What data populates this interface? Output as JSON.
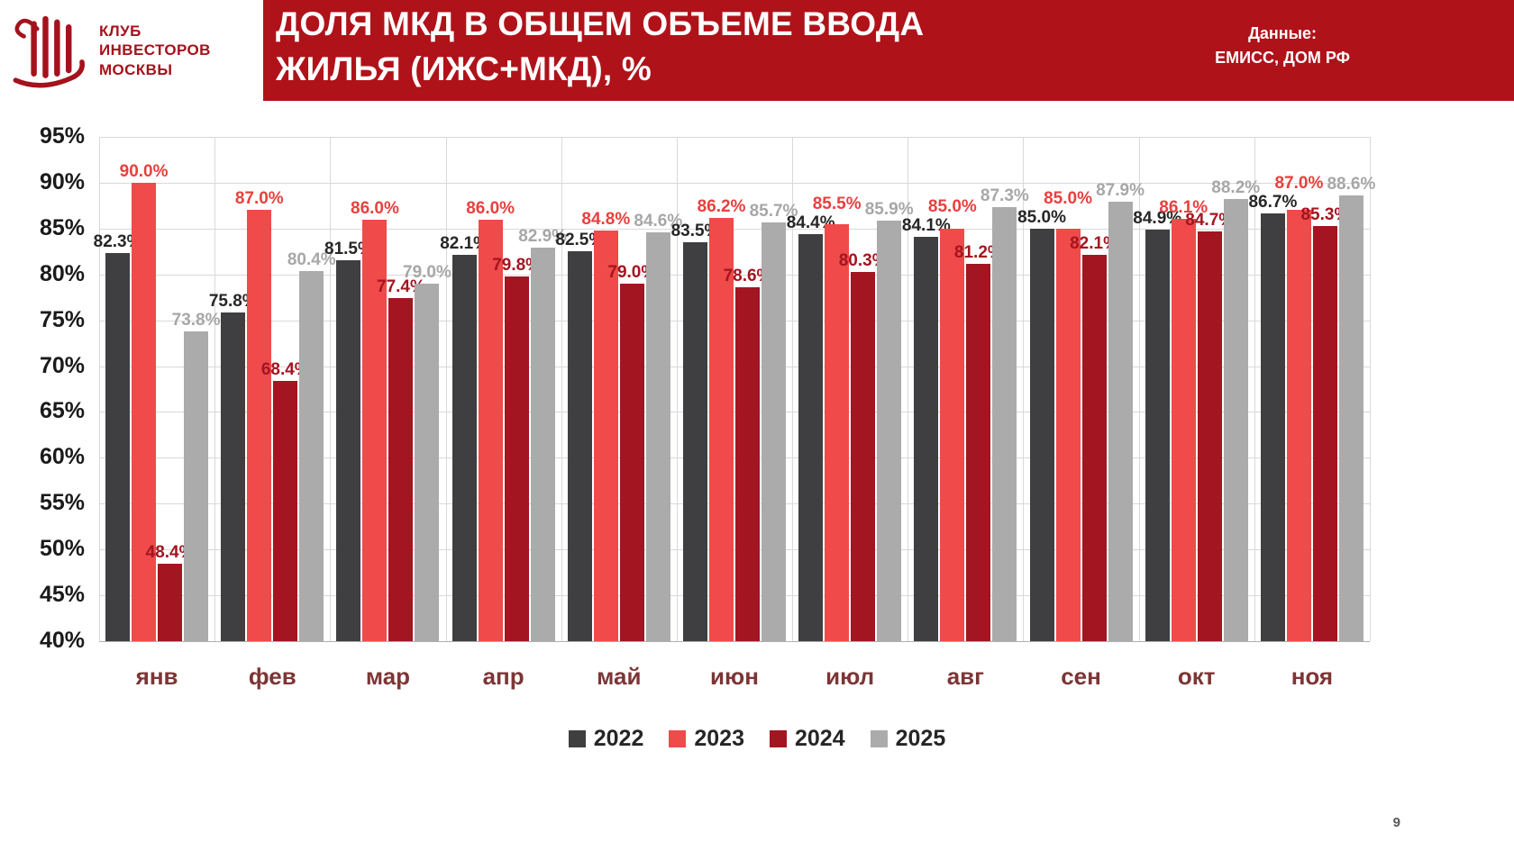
{
  "header": {
    "logo_lines": [
      "КЛУБ",
      "ИНВЕСТОРОВ",
      "МОСКВЫ"
    ],
    "title_line1": "ДОЛЯ МКД В ОБЩЕМ ОБЪЕМЕ ВВОДА",
    "title_line2": "ЖИЛЬЯ (ИЖС+МКД),  %",
    "source_label": "Данные:",
    "source_value": "ЕМИСС, ДОМ РФ"
  },
  "page_number": "9",
  "chart_data": {
    "type": "bar",
    "title": "ДОЛЯ МКД В ОБЩЕМ ОБЪЕМЕ ВВОДА ЖИЛЬЯ (ИЖС+МКД), %",
    "xlabel": "",
    "ylabel": "",
    "categories": [
      "янв",
      "фев",
      "мар",
      "апр",
      "май",
      "июн",
      "июл",
      "авг",
      "сен",
      "окт",
      "ноя"
    ],
    "series": [
      {
        "name": "2022",
        "color": "#3f3f41",
        "label_color": "#262626",
        "values": [
          82.3,
          75.8,
          81.5,
          82.1,
          82.5,
          83.5,
          84.4,
          84.1,
          85.0,
          84.9,
          86.7
        ]
      },
      {
        "name": "2023",
        "color": "#f04a4a",
        "label_color": "#e8403e",
        "values": [
          90.0,
          87.0,
          86.0,
          86.0,
          84.8,
          86.2,
          85.5,
          85.0,
          85.0,
          86.1,
          87.0
        ]
      },
      {
        "name": "2024",
        "color": "#a31520",
        "label_color": "#a31520",
        "values": [
          48.4,
          68.4,
          77.4,
          79.8,
          79.0,
          78.6,
          80.3,
          81.2,
          82.1,
          84.7,
          85.3
        ]
      },
      {
        "name": "2025",
        "color": "#ababab",
        "label_color": "#a7a7a7",
        "values": [
          73.8,
          80.4,
          79.0,
          82.9,
          84.6,
          85.7,
          85.9,
          87.3,
          87.9,
          88.2,
          88.6
        ]
      }
    ],
    "ylim": [
      40,
      95
    ],
    "ytick_step": 5,
    "value_suffix": "%",
    "grid": true,
    "legend_position": "bottom"
  }
}
